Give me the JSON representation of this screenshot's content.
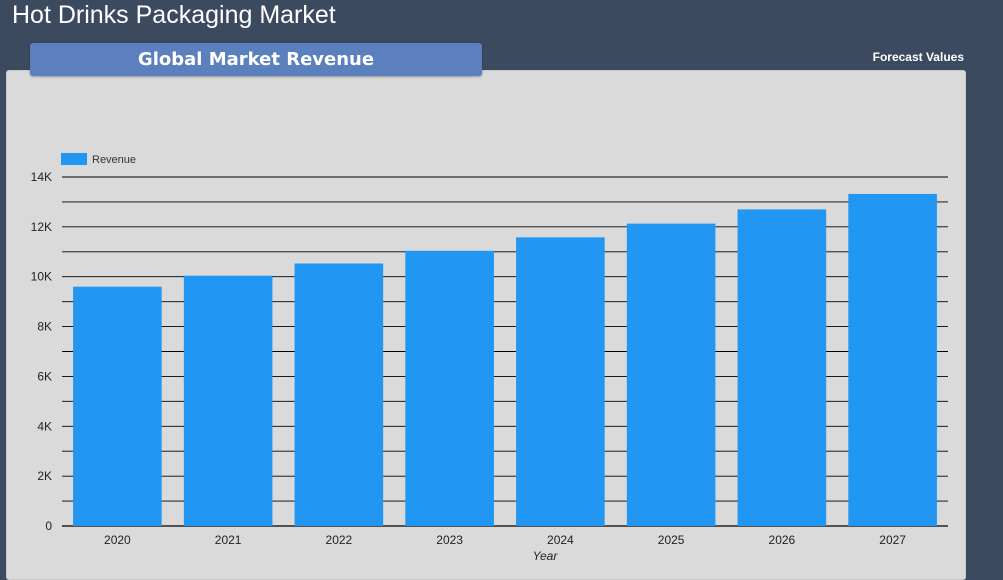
{
  "header": {
    "title": "Hot Drinks Packaging Market"
  },
  "section": {
    "tab_label": "Global Market Revenue",
    "forecast_label": "Forecast Values"
  },
  "colors": {
    "bar": "#2196f3",
    "panel": "#dadada",
    "background": "#3c4a60"
  },
  "chart_data": {
    "type": "bar",
    "categories": [
      "2020",
      "2021",
      "2022",
      "2023",
      "2024",
      "2025",
      "2026",
      "2027"
    ],
    "series": [
      {
        "name": "Revenue",
        "values": [
          9600,
          10040,
          10530,
          11040,
          11580,
          12130,
          12700,
          13320
        ]
      }
    ],
    "xlabel": "Year",
    "ylabel": "",
    "ylim": [
      0,
      14000
    ],
    "yticks": [
      0,
      2000,
      4000,
      6000,
      8000,
      10000,
      12000,
      14000
    ],
    "ytick_labels": [
      "0",
      "2K",
      "4K",
      "6K",
      "8K",
      "10K",
      "12K",
      "14K"
    ],
    "grid": true,
    "legend": "top-left"
  }
}
